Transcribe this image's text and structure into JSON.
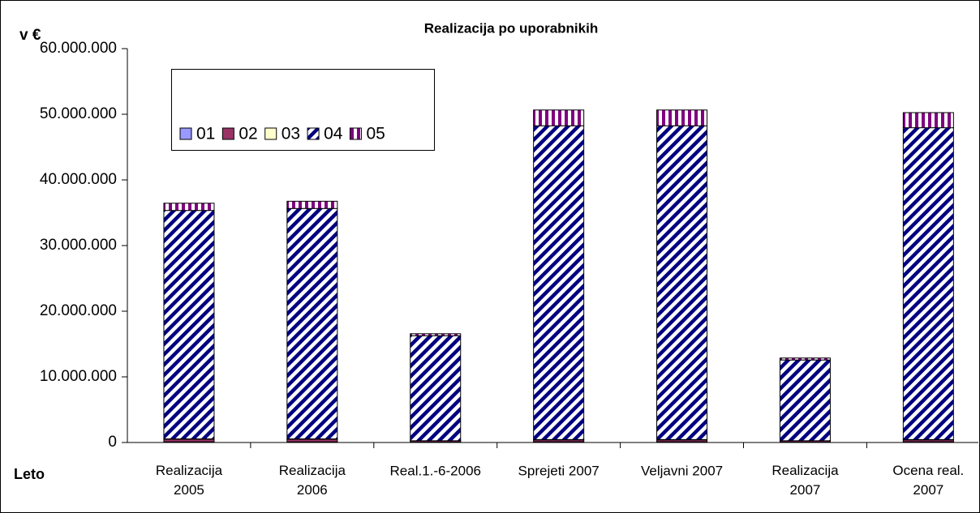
{
  "chart_data": {
    "type": "stacked_bar",
    "title": "Realizacija po uporabnikih",
    "y_label": "v €",
    "x_label": "Leto",
    "categories": [
      "Realizacija\n2005",
      "Realizacija\n2006",
      "Real.1.-6-2006",
      "Sprejeti 2007",
      "Veljavni 2007",
      "Realizacija\n2007",
      "Ocena real.\n2007"
    ],
    "series": [
      {
        "name": "01",
        "color": "#9999ff",
        "hatch": "none",
        "values": [
          100000,
          100000,
          50000,
          100000,
          100000,
          50000,
          100000
        ]
      },
      {
        "name": "02",
        "color": "#993366",
        "hatch": "none",
        "values": [
          400000,
          400000,
          200000,
          300000,
          300000,
          200000,
          300000
        ]
      },
      {
        "name": "03",
        "color": "#ffffcc",
        "hatch": "none",
        "values": [
          50000,
          50000,
          20000,
          50000,
          50000,
          20000,
          50000
        ]
      },
      {
        "name": "04",
        "color": "#000080",
        "hatch": "diagonal",
        "values": [
          34800000,
          35100000,
          16000000,
          47800000,
          47800000,
          12300000,
          47500000
        ]
      },
      {
        "name": "05",
        "color": "#800080",
        "hatch": "vertical",
        "values": [
          1100000,
          1100000,
          300000,
          2400000,
          2400000,
          300000,
          2300000
        ]
      }
    ],
    "ylim": [
      0,
      60000000
    ],
    "yticks": [
      0,
      {
        "value": 10000000,
        "label": "10.000.000"
      },
      {
        "value": 20000000,
        "label": "20.000.000"
      },
      {
        "value": 30000000,
        "label": "30.000.000"
      },
      {
        "value": 40000000,
        "label": "40.000.000"
      },
      {
        "value": 50000000,
        "label": "50.000.000"
      },
      {
        "value": 60000000,
        "label": "60.000.000"
      }
    ],
    "grid": false,
    "legend": "top-left"
  }
}
